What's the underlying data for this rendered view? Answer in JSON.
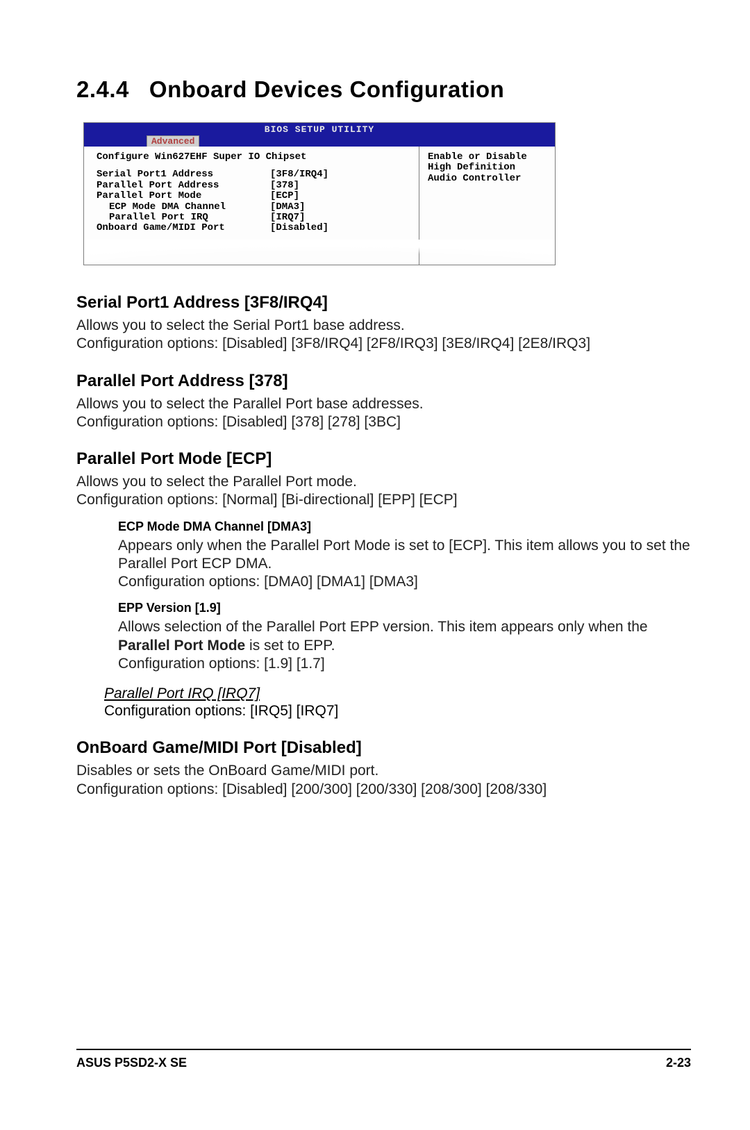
{
  "page": {
    "sectionNumber": "2.4.4",
    "sectionTitle": "Onboard Devices Configuration",
    "footerLeft": "ASUS P5SD2-X SE",
    "footerRight": "2-23"
  },
  "bios": {
    "titlebar": "BIOS SETUP UTILITY",
    "tab": "Advanced",
    "configureLine": "Configure Win627EHF Super IO Chipset",
    "rows": [
      {
        "label": "Serial Port1 Address",
        "value": "[3F8/IRQ4]",
        "indent": false
      },
      {
        "label": "Parallel Port Address",
        "value": "[378]",
        "indent": false
      },
      {
        "label": "Parallel Port Mode",
        "value": "[ECP]",
        "indent": false
      },
      {
        "label": "ECP Mode DMA Channel",
        "value": "[DMA3]",
        "indent": true
      },
      {
        "label": "Parallel Port IRQ",
        "value": "[IRQ7]",
        "indent": true
      },
      {
        "label": "Onboard Game/MIDI Port",
        "value": "[Disabled]",
        "indent": false
      }
    ],
    "help": "Enable or Disable High Definition Audio Controller",
    "colors": {
      "headerBg": "#1a1a9e",
      "headerText": "#e8e8e8",
      "tabBg": "#d0d0d0",
      "tabText": "#b04040",
      "bodyBg": "#fdfdfd",
      "border": "#7d7d7d"
    }
  },
  "sections": {
    "serialPort1": {
      "heading": "Serial Port1 Address [3F8/IRQ4]",
      "line1": "Allows you to select the Serial Port1 base address.",
      "line2": "Configuration options: [Disabled] [3F8/IRQ4] [2F8/IRQ3] [3E8/IRQ4] [2E8/IRQ3]"
    },
    "parallelPortAddress": {
      "heading": "Parallel Port Address [378]",
      "line1": "Allows you to select the Parallel Port base addresses.",
      "line2": "Configuration options: [Disabled] [378] [278] [3BC]"
    },
    "parallelPortMode": {
      "heading": "Parallel Port Mode [ECP]",
      "line1": "Allows you to select the Parallel Port  mode.",
      "line2": "Configuration options: [Normal] [Bi-directional] [EPP] [ECP]"
    },
    "ecpDma": {
      "heading": "ECP Mode DMA Channel [DMA3]",
      "line1": "Appears only when the Parallel Port Mode is set to [ECP]. This item allows you to set the Parallel Port ECP DMA.",
      "line2": "Configuration options: [DMA0] [DMA1] [DMA3]"
    },
    "eppVersion": {
      "heading": "EPP Version [1.9]",
      "line1a": "Allows selection of the Parallel Port EPP version. This item appears only when the ",
      "line1bold": "Parallel Port Mode",
      "line1b": " is set to EPP.",
      "line2": "Configuration options: [1.9] [1.7]"
    },
    "parallelPortIrq": {
      "heading": "Parallel Port IRQ [IRQ7]",
      "line1": "Configuration options: [IRQ5] [IRQ7]"
    },
    "gameMidi": {
      "heading": "OnBoard Game/MIDI Port [Disabled]",
      "line1": "Disables or sets the OnBoard Game/MIDI port.",
      "line2": "Configuration options: [Disabled] [200/300] [200/330] [208/300] [208/330]"
    }
  }
}
